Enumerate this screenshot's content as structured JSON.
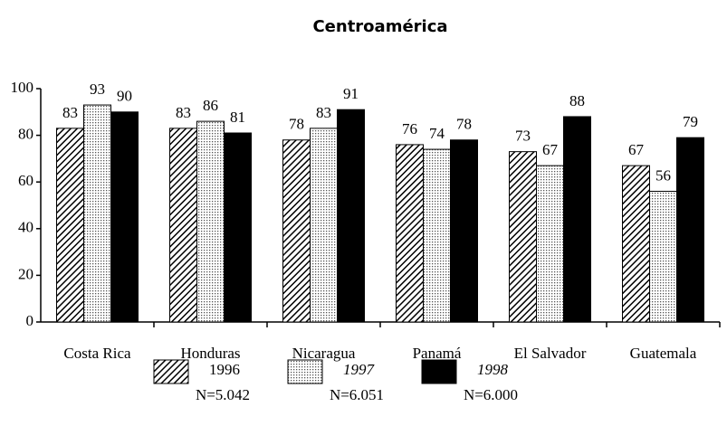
{
  "chart_data": {
    "type": "bar",
    "title": "Centroamérica",
    "categories": [
      "Costa Rica",
      "Honduras",
      "Nicaragua",
      "Panamá",
      "El Salvador",
      "Guatemala"
    ],
    "series": [
      {
        "name": "1996",
        "sample": "N=5.042",
        "color": "#000000",
        "pattern": "hatch",
        "values": [
          83,
          83,
          78,
          76,
          73,
          67
        ]
      },
      {
        "name": "1997",
        "sample": "N=6.051",
        "color": "#000000",
        "pattern": "dots",
        "values": [
          93,
          86,
          83,
          74,
          67,
          56
        ]
      },
      {
        "name": "1998",
        "sample": "N=6.000",
        "color": "#000000",
        "pattern": "solid",
        "values": [
          90,
          81,
          91,
          78,
          88,
          79
        ]
      }
    ],
    "ylim": [
      0,
      100
    ],
    "yticks": [
      0,
      20,
      40,
      60,
      80,
      100
    ],
    "grid": false,
    "data_labels": true
  }
}
